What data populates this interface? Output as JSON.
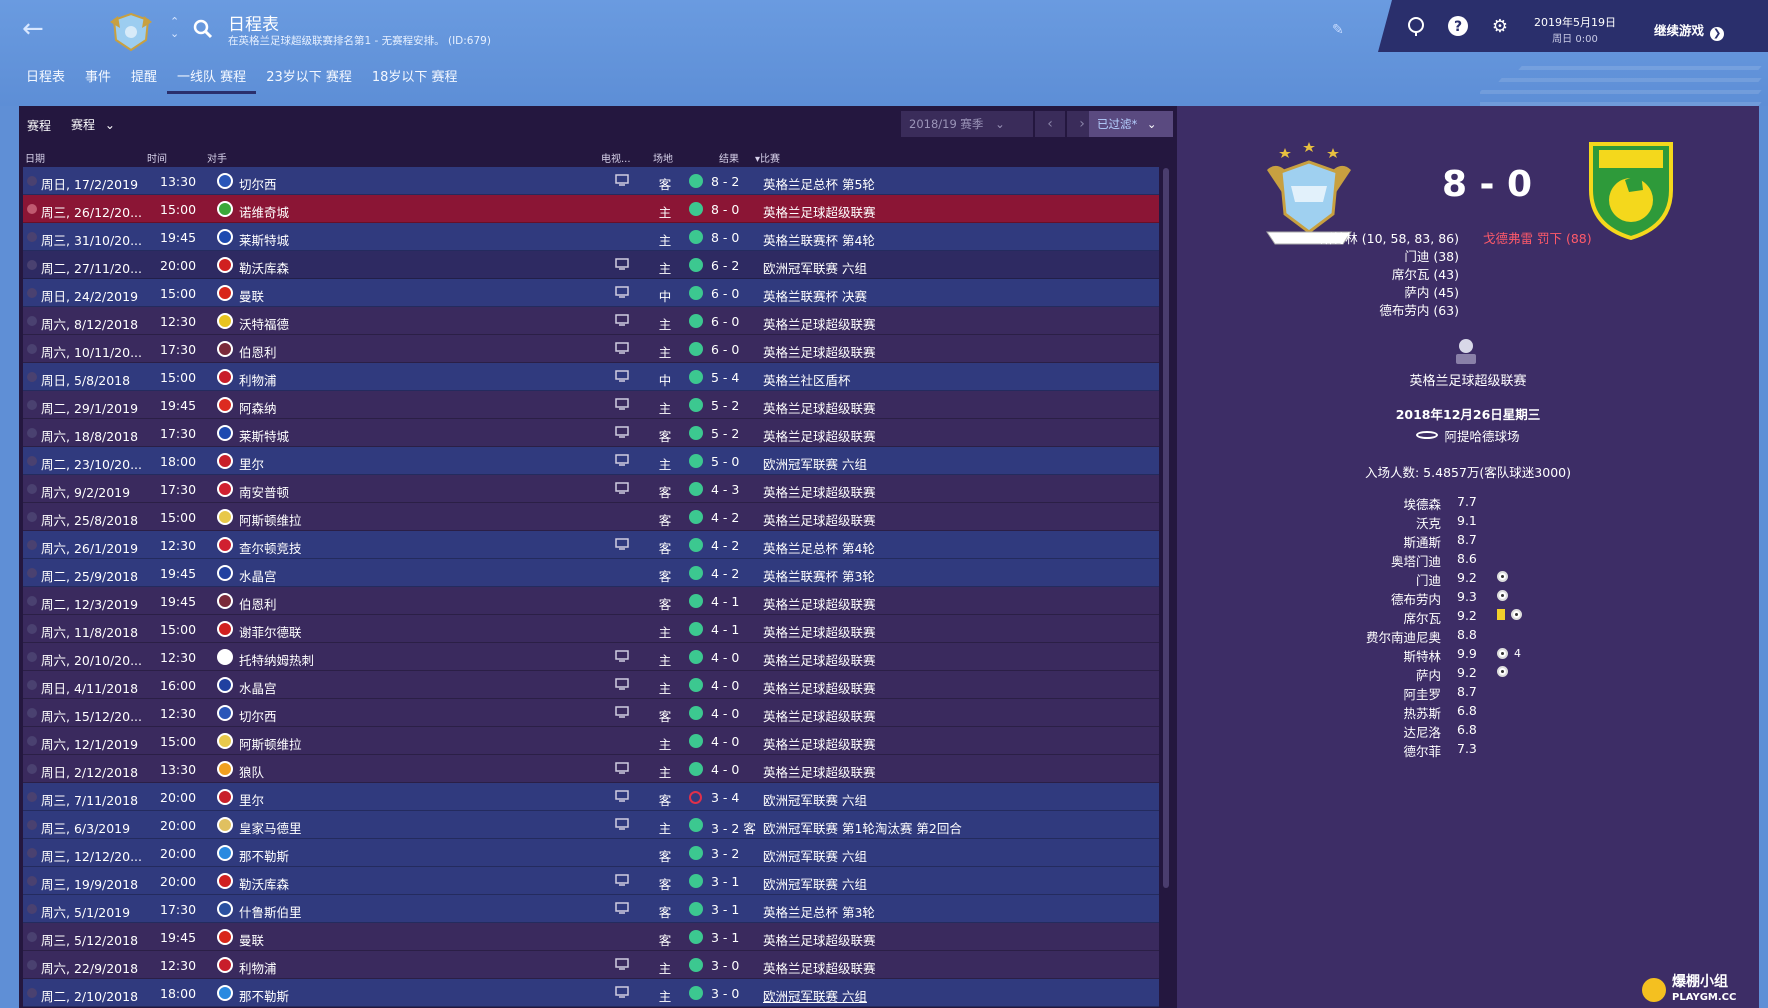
{
  "header": {
    "title": "日程表",
    "subtitle": "在英格兰足球超级联赛排名第1 - 无赛程安排。 (ID:679)",
    "date_line1": "2019年5月19日",
    "date_line2": "周日 0:00",
    "continue_label": "继续游戏",
    "back_icon": "back-arrow-icon",
    "colors": {
      "header_bg": "#5f8fd6",
      "panel_bg": "#24173f",
      "selected_row": "#8b1535",
      "accent": "#2a2f6c"
    }
  },
  "tabs": [
    {
      "label": "日程表",
      "active": false
    },
    {
      "label": "事件",
      "active": false
    },
    {
      "label": "提醒",
      "active": false
    },
    {
      "label": "一线队 赛程",
      "active": true
    },
    {
      "label": "23岁以下 赛程",
      "active": false
    },
    {
      "label": "18岁以下 赛程",
      "active": false
    }
  ],
  "toolbar": {
    "label": "赛程",
    "dropdown": "赛程",
    "season": "2018/19 赛季",
    "filter": "已过滤*"
  },
  "columns": {
    "date": "日期",
    "time": "时间",
    "opponent": "对手",
    "tv": "电视...",
    "venue": "场地",
    "result": "结果",
    "competition": "比赛"
  },
  "fixtures": [
    {
      "date": "周日, 17/2/2019",
      "time": "13:30",
      "opponent": "切尔西",
      "tv": true,
      "venue": "客",
      "result": "win",
      "score": "8 - 2",
      "competition": "英格兰足总杯 第5轮",
      "style": "blue",
      "badge": "#2a56b8"
    },
    {
      "date": "周三, 26/12/20...",
      "time": "15:00",
      "opponent": "诺维奇城",
      "tv": false,
      "venue": "主",
      "result": "win",
      "score": "8 - 0",
      "competition": "英格兰足球超级联赛",
      "style": "sel",
      "badge": "#3aa83a"
    },
    {
      "date": "周三, 31/10/20...",
      "time": "19:45",
      "opponent": "莱斯特城",
      "tv": false,
      "venue": "主",
      "result": "win",
      "score": "8 - 0",
      "competition": "英格兰联赛杯 第4轮",
      "style": "blue",
      "badge": "#1e4ab0"
    },
    {
      "date": "周二, 27/11/20...",
      "time": "20:00",
      "opponent": "勒沃库森",
      "tv": true,
      "venue": "主",
      "result": "win",
      "score": "6 - 2",
      "competition": "欧洲冠军联赛 六组",
      "style": "odd",
      "badge": "#d02020"
    },
    {
      "date": "周日, 24/2/2019",
      "time": "15:00",
      "opponent": "曼联",
      "tv": true,
      "venue": "中",
      "result": "win",
      "score": "6 - 0",
      "competition": "英格兰联赛杯 决赛",
      "style": "blue",
      "badge": "#d8261a"
    },
    {
      "date": "周六, 8/12/2018",
      "time": "12:30",
      "opponent": "沃特福德",
      "tv": true,
      "venue": "主",
      "result": "win",
      "score": "6 - 0",
      "competition": "英格兰足球超级联赛",
      "style": "even",
      "badge": "#e8c420"
    },
    {
      "date": "周六, 10/11/20...",
      "time": "17:30",
      "opponent": "伯恩利",
      "tv": true,
      "venue": "主",
      "result": "win",
      "score": "6 - 0",
      "competition": "英格兰足球超级联赛",
      "style": "even",
      "badge": "#7a2a3a"
    },
    {
      "date": "周日, 5/8/2018",
      "time": "15:00",
      "opponent": "利物浦",
      "tv": true,
      "venue": "中",
      "result": "win",
      "score": "5 - 4",
      "competition": "英格兰社区盾杯",
      "style": "blue",
      "badge": "#c81e2a"
    },
    {
      "date": "周二, 29/1/2019",
      "time": "19:45",
      "opponent": "阿森纳",
      "tv": true,
      "venue": "主",
      "result": "win",
      "score": "5 - 2",
      "competition": "英格兰足球超级联赛",
      "style": "even",
      "badge": "#dc2a20"
    },
    {
      "date": "周六, 18/8/2018",
      "time": "17:30",
      "opponent": "莱斯特城",
      "tv": true,
      "venue": "客",
      "result": "win",
      "score": "5 - 2",
      "competition": "英格兰足球超级联赛",
      "style": "even",
      "badge": "#1e4ab0"
    },
    {
      "date": "周二, 23/10/20...",
      "time": "18:00",
      "opponent": "里尔",
      "tv": true,
      "venue": "主",
      "result": "win",
      "score": "5 - 0",
      "competition": "欧洲冠军联赛 六组",
      "style": "blue",
      "badge": "#c8202a"
    },
    {
      "date": "周六, 9/2/2019",
      "time": "17:30",
      "opponent": "南安普顿",
      "tv": true,
      "venue": "客",
      "result": "win",
      "score": "4 - 3",
      "competition": "英格兰足球超级联赛",
      "style": "even",
      "badge": "#d02030"
    },
    {
      "date": "周六, 25/8/2018",
      "time": "15:00",
      "opponent": "阿斯顿维拉",
      "tv": false,
      "venue": "客",
      "result": "win",
      "score": "4 - 2",
      "competition": "英格兰足球超级联赛",
      "style": "even",
      "badge": "#e8c84a"
    },
    {
      "date": "周六, 26/1/2019",
      "time": "12:30",
      "opponent": "查尔顿竞技",
      "tv": true,
      "venue": "客",
      "result": "win",
      "score": "4 - 2",
      "competition": "英格兰足总杯 第4轮",
      "style": "blue",
      "badge": "#d02030"
    },
    {
      "date": "周二, 25/9/2018",
      "time": "19:45",
      "opponent": "水晶宫",
      "tv": false,
      "venue": "客",
      "result": "win",
      "score": "4 - 2",
      "competition": "英格兰联赛杯 第3轮",
      "style": "blue",
      "badge": "#2040a0"
    },
    {
      "date": "周二, 12/3/2019",
      "time": "19:45",
      "opponent": "伯恩利",
      "tv": false,
      "venue": "客",
      "result": "win",
      "score": "4 - 1",
      "competition": "英格兰足球超级联赛",
      "style": "even",
      "badge": "#7a2a3a"
    },
    {
      "date": "周六, 11/8/2018",
      "time": "15:00",
      "opponent": "谢菲尔德联",
      "tv": false,
      "venue": "主",
      "result": "win",
      "score": "4 - 1",
      "competition": "英格兰足球超级联赛",
      "style": "even",
      "badge": "#d02020"
    },
    {
      "date": "周六, 20/10/20...",
      "time": "12:30",
      "opponent": "托特纳姆热刺",
      "tv": true,
      "venue": "主",
      "result": "win",
      "score": "4 - 0",
      "competition": "英格兰足球超级联赛",
      "style": "even",
      "badge": "#ffffff"
    },
    {
      "date": "周日, 4/11/2018",
      "time": "16:00",
      "opponent": "水晶宫",
      "tv": true,
      "venue": "主",
      "result": "win",
      "score": "4 - 0",
      "competition": "英格兰足球超级联赛",
      "style": "even",
      "badge": "#2040a0"
    },
    {
      "date": "周六, 15/12/20...",
      "time": "12:30",
      "opponent": "切尔西",
      "tv": true,
      "venue": "客",
      "result": "win",
      "score": "4 - 0",
      "competition": "英格兰足球超级联赛",
      "style": "even",
      "badge": "#2a56b8"
    },
    {
      "date": "周六, 12/1/2019",
      "time": "15:00",
      "opponent": "阿斯顿维拉",
      "tv": false,
      "venue": "主",
      "result": "win",
      "score": "4 - 0",
      "competition": "英格兰足球超级联赛",
      "style": "even",
      "badge": "#e8c84a"
    },
    {
      "date": "周日, 2/12/2018",
      "time": "13:30",
      "opponent": "狼队",
      "tv": true,
      "venue": "主",
      "result": "win",
      "score": "4 - 0",
      "competition": "英格兰足球超级联赛",
      "style": "even",
      "badge": "#f0a020"
    },
    {
      "date": "周三, 7/11/2018",
      "time": "20:00",
      "opponent": "里尔",
      "tv": true,
      "venue": "客",
      "result": "loss",
      "score": "3 - 4",
      "competition": "欧洲冠军联赛 六组",
      "style": "blue",
      "badge": "#c8202a"
    },
    {
      "date": "周三, 6/3/2019",
      "time": "20:00",
      "opponent": "皇家马德里",
      "tv": true,
      "venue": "主",
      "result": "win",
      "score": "3 - 2 客",
      "competition": "欧洲冠军联赛 第1轮淘汰赛 第2回合",
      "style": "blue",
      "badge": "#e0c060"
    },
    {
      "date": "周三, 12/12/20...",
      "time": "20:00",
      "opponent": "那不勒斯",
      "tv": false,
      "venue": "客",
      "result": "win",
      "score": "3 - 2",
      "competition": "欧洲冠军联赛 六组",
      "style": "blue",
      "badge": "#2a8ae0"
    },
    {
      "date": "周三, 19/9/2018",
      "time": "20:00",
      "opponent": "勒沃库森",
      "tv": true,
      "venue": "客",
      "result": "win",
      "score": "3 - 1",
      "competition": "欧洲冠军联赛 六组",
      "style": "blue",
      "badge": "#d02020"
    },
    {
      "date": "周六, 5/1/2019",
      "time": "17:30",
      "opponent": "什鲁斯伯里",
      "tv": true,
      "venue": "客",
      "result": "win",
      "score": "3 - 1",
      "competition": "英格兰足总杯 第3轮",
      "style": "blue",
      "badge": "#2a50a0"
    },
    {
      "date": "周三, 5/12/2018",
      "time": "19:45",
      "opponent": "曼联",
      "tv": false,
      "venue": "客",
      "result": "win",
      "score": "3 - 1",
      "competition": "英格兰足球超级联赛",
      "style": "even",
      "badge": "#d8261a"
    },
    {
      "date": "周六, 22/9/2018",
      "time": "12:30",
      "opponent": "利物浦",
      "tv": true,
      "venue": "主",
      "result": "win",
      "score": "3 - 0",
      "competition": "英格兰足球超级联赛",
      "style": "even",
      "badge": "#c81e2a"
    },
    {
      "date": "周二, 2/10/2018",
      "time": "18:00",
      "opponent": "那不勒斯",
      "tv": true,
      "venue": "主",
      "result": "win",
      "score": "3 - 0",
      "competition": "欧洲冠军联赛 六组",
      "style": "blue",
      "badge": "#2a8ae0",
      "underline": true
    }
  ],
  "detail": {
    "score": "8 - 0",
    "home_scorers": [
      "斯特林 (10, 58, 83, 86)",
      "门迪 (38)",
      "席尔瓦 (43)",
      "萨内 (45)",
      "德布劳内 (63)"
    ],
    "away_events": "戈德弗雷 罚下 (88)",
    "competition": "英格兰足球超级联赛",
    "date": "2018年12月26日星期三",
    "stadium": "阿提哈德球场",
    "attendance": "入场人数: 5.4857万(客队球迷3000)",
    "ratings": [
      {
        "name": "埃德森",
        "rating": "7.7",
        "goals": 0,
        "yellow": false
      },
      {
        "name": "沃克",
        "rating": "9.1",
        "goals": 0,
        "yellow": false
      },
      {
        "name": "斯通斯",
        "rating": "8.7",
        "goals": 0,
        "yellow": false
      },
      {
        "name": "奥塔门迪",
        "rating": "8.6",
        "goals": 0,
        "yellow": false
      },
      {
        "name": "门迪",
        "rating": "9.2",
        "goals": 1,
        "yellow": false
      },
      {
        "name": "德布劳内",
        "rating": "9.3",
        "goals": 1,
        "yellow": false
      },
      {
        "name": "席尔瓦",
        "rating": "9.2",
        "goals": 1,
        "yellow": true
      },
      {
        "name": "费尔南迪尼奥",
        "rating": "8.8",
        "goals": 0,
        "yellow": false
      },
      {
        "name": "斯特林",
        "rating": "9.9",
        "goals": 1,
        "goals_label": "4",
        "yellow": false
      },
      {
        "name": "萨内",
        "rating": "9.2",
        "goals": 1,
        "yellow": false
      },
      {
        "name": "阿圭罗",
        "rating": "8.7",
        "goals": 0,
        "yellow": false
      },
      {
        "name": "热苏斯",
        "rating": "6.8",
        "goals": 0,
        "yellow": false
      },
      {
        "name": "达尼洛",
        "rating": "6.8",
        "goals": 0,
        "yellow": false
      },
      {
        "name": "德尔菲",
        "rating": "7.3",
        "goals": 0,
        "yellow": false
      }
    ]
  }
}
